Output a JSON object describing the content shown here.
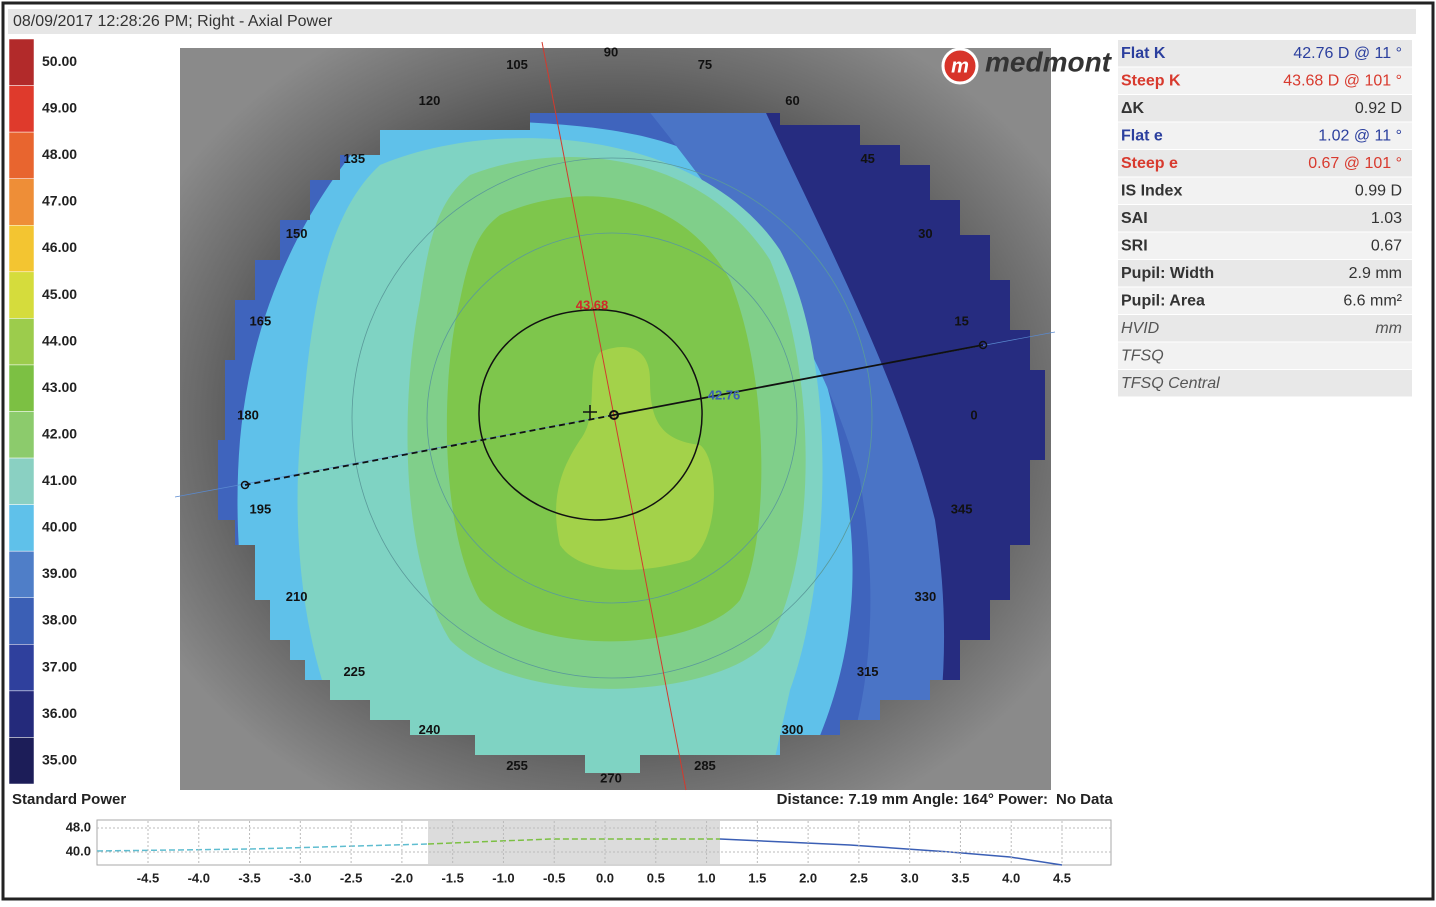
{
  "header": {
    "title": "08/09/2017 12:28:26 PM; Right - Axial Power"
  },
  "scale": {
    "title": "Standard Power",
    "levels": [
      {
        "label": "50.00",
        "color": "#b22a2a"
      },
      {
        "label": "49.00",
        "color": "#df3a2c"
      },
      {
        "label": "48.00",
        "color": "#e8652f"
      },
      {
        "label": "47.00",
        "color": "#ee8e37"
      },
      {
        "label": "46.00",
        "color": "#f3c531"
      },
      {
        "label": "45.00",
        "color": "#d5dc3c"
      },
      {
        "label": "44.00",
        "color": "#9ccc4c"
      },
      {
        "label": "43.00",
        "color": "#7cc043"
      },
      {
        "label": "42.00",
        "color": "#8ccb6c"
      },
      {
        "label": "41.00",
        "color": "#8ad0c2"
      },
      {
        "label": "40.00",
        "color": "#5fc1ea"
      },
      {
        "label": "39.00",
        "color": "#4f7ec8"
      },
      {
        "label": "38.00",
        "color": "#3b5fb5"
      },
      {
        "label": "37.00",
        "color": "#2f409d"
      },
      {
        "label": "36.00",
        "color": "#242a7b"
      },
      {
        "label": "35.00",
        "color": "#1c1d58"
      }
    ]
  },
  "map": {
    "logo": "medmont",
    "angles": [
      "90",
      "75",
      "60",
      "45",
      "30",
      "15",
      "0",
      "345",
      "330",
      "315",
      "300",
      "285",
      "270",
      "255",
      "240",
      "225",
      "210",
      "195",
      "180",
      "165",
      "150",
      "135",
      "120",
      "105"
    ],
    "steep_marker": "43.68",
    "flat_marker": "42.76"
  },
  "stats": {
    "rows": [
      {
        "label": "Flat K",
        "value": "42.76 D @  11 °",
        "color": "#2b3f9e"
      },
      {
        "label": "Steep K",
        "value": "43.68 D @ 101 °",
        "color": "#d83a2e"
      },
      {
        "label": "ΔK",
        "value": "0.92 D",
        "color": "#333333"
      },
      {
        "label": "Flat e",
        "value": "1.02 @  11 °",
        "color": "#2b3f9e"
      },
      {
        "label": "Steep e",
        "value": "0.67 @ 101 °",
        "color": "#d83a2e"
      },
      {
        "label": "IS Index",
        "value": "0.99 D",
        "color": "#333333"
      },
      {
        "label": "SAI",
        "value": "1.03",
        "color": "#333333"
      },
      {
        "label": "SRI",
        "value": "0.67",
        "color": "#333333"
      },
      {
        "label": "Pupil: Width",
        "value": "2.9 mm",
        "color": "#333333"
      },
      {
        "label": "Pupil: Area",
        "value": "6.6 mm²",
        "color": "#333333"
      },
      {
        "label": "HVID",
        "value": "mm",
        "color": "#555555",
        "italic": true
      },
      {
        "label": "TFSQ",
        "color": "#555555",
        "italic": true
      },
      {
        "label": "TFSQ Central",
        "color": "#555555",
        "italic": true
      }
    ]
  },
  "status": {
    "text": "Distance: 7.19 mm Angle: 164° Power:",
    "value": "No Data"
  },
  "profile": {
    "yticks": [
      "48.0",
      "40.0"
    ],
    "xticks": [
      "-4.5",
      "-4.0",
      "-3.5",
      "-3.0",
      "-2.5",
      "-2.0",
      "-1.5",
      "-1.0",
      "-0.5",
      "0.0",
      "0.5",
      "1.0",
      "1.5",
      "2.0",
      "2.5",
      "3.0",
      "3.5",
      "4.0",
      "4.5"
    ]
  }
}
